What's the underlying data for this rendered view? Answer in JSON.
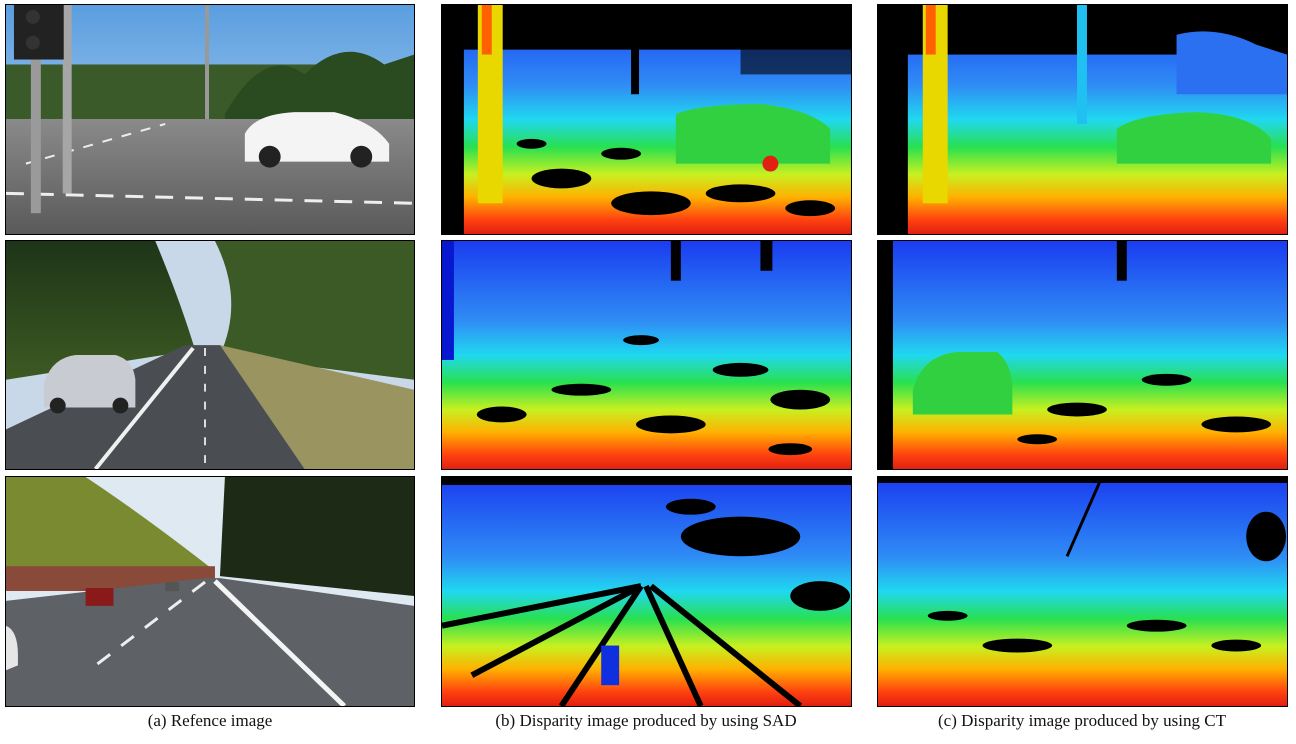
{
  "figure": {
    "captions": [
      "(a)  Refence image",
      "(b)  Disparity image produced by using SAD",
      "(c)  Disparity image produced by using CT"
    ]
  }
}
